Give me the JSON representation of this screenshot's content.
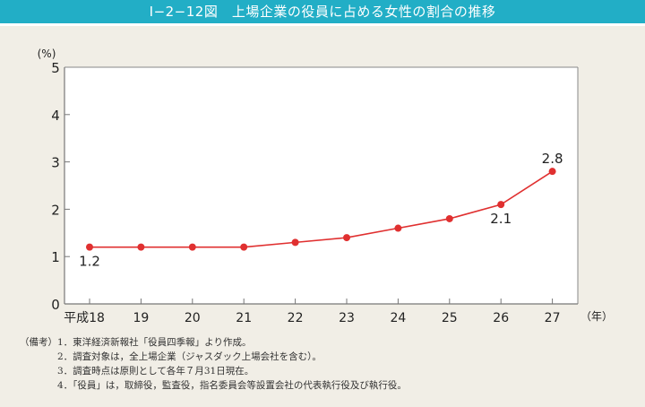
{
  "header": {
    "figure_number": "Ⅰ−2−12図",
    "title": "上場企業の役員に占める女性の割合の推移",
    "full_title": "Ⅰ−2−12図　上場企業の役員に占める女性の割合の推移"
  },
  "chart_data": {
    "type": "line",
    "title": "上場企業の役員に占める女性の割合の推移",
    "xlabel": "（年）",
    "ylabel": "(%)",
    "categories": [
      "平成18",
      "19",
      "20",
      "21",
      "22",
      "23",
      "24",
      "25",
      "26",
      "27"
    ],
    "series": [
      {
        "name": "上場企業の役員に占める女性の割合",
        "values": [
          1.2,
          1.2,
          1.2,
          1.2,
          1.3,
          1.4,
          1.6,
          1.8,
          2.1,
          2.8
        ],
        "color": "#e03030"
      }
    ],
    "data_labels": [
      {
        "index": 0,
        "text": "1.2",
        "position": "below"
      },
      {
        "index": 8,
        "text": "2.1",
        "position": "below"
      },
      {
        "index": 9,
        "text": "2.8",
        "position": "above"
      }
    ],
    "ylim": [
      0,
      5
    ],
    "yticks": [
      "0",
      "1",
      "2",
      "3",
      "4",
      "5"
    ],
    "grid": false,
    "legend": null
  },
  "notes": {
    "label": "（備考）",
    "items": [
      "1．東洋経済新報社「役員四季報」より作成。",
      "2．調査対象は，全上場企業（ジャスダック上場会社を含む）。",
      "3．調査時点は原則として各年７月31日現在。",
      "4．「役員」は，取締役，監査役，指名委員会等設置会社の代表執行役及び執行役。"
    ]
  },
  "colors": {
    "title_bar": "#22aec6",
    "background": "#f1eee6",
    "plot_background": "#ffffff",
    "line": "#e03030",
    "axis": "#777777"
  }
}
